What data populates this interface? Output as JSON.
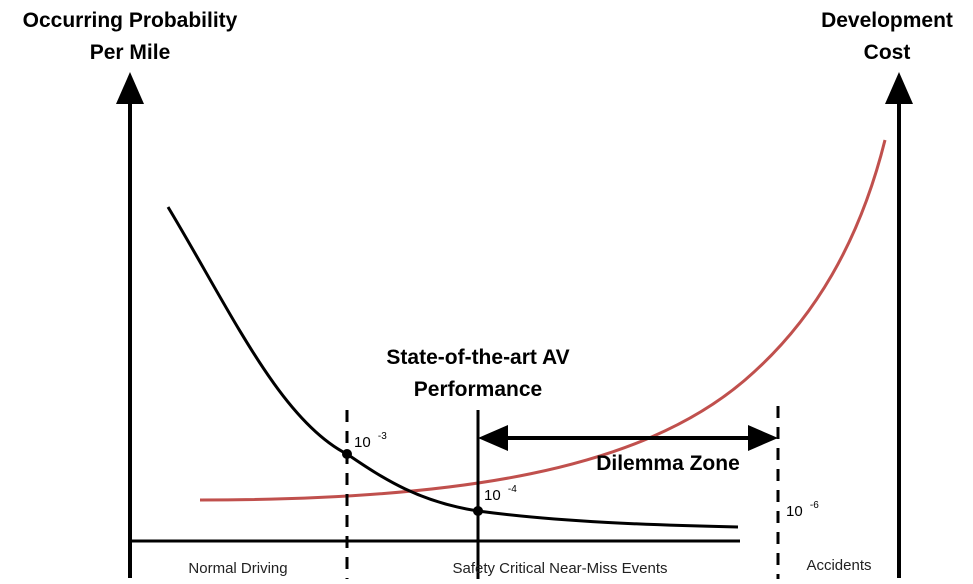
{
  "left_axis": {
    "title_line1": "Occurring Probability",
    "title_line2": "Per Mile"
  },
  "right_axis": {
    "title_line1": "Development",
    "title_line2": "Cost"
  },
  "annotations": {
    "sota_line1": "State-of-the-art AV",
    "sota_line2": "Performance",
    "dilemma": "Dilemma Zone"
  },
  "thresholds": {
    "t1": {
      "base": "10",
      "exp": "-3"
    },
    "t2": {
      "base": "10",
      "exp": "-4"
    },
    "t3": {
      "base": "10",
      "exp": "-6"
    }
  },
  "regions": {
    "normal": "Normal Driving",
    "critical": "Safety Critical Near-Miss Events",
    "accidents": "Accidents"
  },
  "colors": {
    "probability_curve": "#000000",
    "cost_curve": "#c0504d",
    "axes": "#000000"
  }
}
